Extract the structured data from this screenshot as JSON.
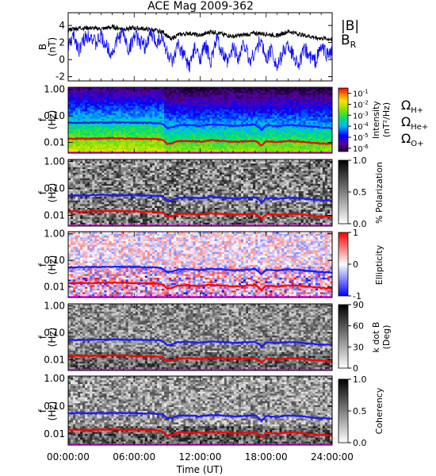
{
  "title": "ACE Mag 2009-362",
  "time_axis": {
    "label": "Time (UT)",
    "ticks": [
      "00:00:00",
      "06:00:00",
      "12:00:00",
      "18:00:00",
      "24:00:00"
    ],
    "range_hours": [
      0,
      24
    ]
  },
  "line_colors": {
    "B": "#000000",
    "BR": "#1010ff",
    "H": "#1a1aff",
    "He": "#ff0000",
    "O": "#ff00ff"
  },
  "chart_data": [
    {
      "type": "line",
      "ylabel": "B",
      "yunit": "(nT)",
      "ylim": [
        -2.5,
        5.5
      ],
      "yticks": [
        "-2",
        "0",
        "2",
        "4"
      ],
      "ytick_values": [
        -2,
        0,
        2,
        4
      ],
      "legend": [
        {
          "label": "|B|",
          "color": "#000000"
        },
        {
          "label": "B",
          "sub": "R",
          "color": "#1010ff"
        }
      ],
      "series": [
        {
          "name": "|B|",
          "x": [
            0,
            1,
            2,
            3,
            4,
            5,
            6,
            7,
            8,
            8.7,
            9.3,
            10,
            11,
            12,
            13,
            14,
            15,
            16,
            17,
            18,
            19,
            20,
            21,
            22,
            23,
            24
          ],
          "values": [
            3.5,
            3.7,
            3.7,
            3.6,
            3.8,
            3.6,
            3.7,
            3.6,
            3.4,
            3.2,
            2.4,
            2.9,
            3.1,
            2.8,
            3.3,
            3.0,
            2.7,
            2.9,
            3.1,
            3.0,
            2.8,
            3.3,
            3.0,
            2.7,
            2.5,
            2.4
          ]
        },
        {
          "name": "B_R",
          "x": [
            0,
            0.5,
            1,
            1.5,
            2,
            2.5,
            3,
            3.5,
            4,
            4.5,
            5,
            5.5,
            6,
            6.5,
            7,
            7.5,
            8,
            8.5,
            9,
            9.5,
            10,
            10.5,
            11,
            11.5,
            12,
            12.5,
            13,
            13.5,
            14,
            14.5,
            15,
            15.5,
            16,
            16.5,
            17,
            17.5,
            18,
            18.5,
            19,
            19.5,
            20,
            20.5,
            21,
            21.5,
            22,
            22.5,
            23,
            23.5,
            24
          ],
          "values": [
            1.5,
            2.8,
            1.2,
            2.5,
            3.0,
            1.8,
            2.7,
            1.5,
            0.7,
            2.4,
            3.2,
            1.0,
            2.8,
            2.2,
            1.5,
            3.0,
            2.0,
            2.6,
            0.8,
            -0.6,
            1.8,
            0.5,
            -0.8,
            1.2,
            0.2,
            1.6,
            -0.2,
            2.5,
            0.8,
            -0.5,
            1.5,
            0.2,
            2.0,
            -0.3,
            1.0,
            2.2,
            0.0,
            1.3,
            -1.0,
            0.8,
            1.8,
            0.4,
            -0.5,
            1.2,
            0.3,
            -0.2,
            1.5,
            0.6,
            0.9
          ]
        }
      ]
    },
    {
      "type": "heatmap",
      "ylabel": "f",
      "yunit": "(Hz)",
      "yscale": "log",
      "ylim": [
        0.004,
        1.2
      ],
      "yticks": [
        "1.00",
        "0.10",
        "0.01"
      ],
      "ytick_values": [
        1,
        0.1,
        0.01
      ],
      "colorbar": {
        "label": "Intensity",
        "unit": "(nT²/Hz)",
        "scale": "log",
        "colormap": "rainbow",
        "ticks": [
          {
            "base": "10",
            "exp": "-1",
            "value": 0.1
          },
          {
            "base": "10",
            "exp": "-2",
            "value": 0.01
          },
          {
            "base": "10",
            "exp": "-3",
            "value": 0.001
          },
          {
            "base": "10",
            "exp": "-4",
            "value": 0.0001
          },
          {
            "base": "10",
            "exp": "-5",
            "value": 1e-05
          },
          {
            "base": "10",
            "exp": "-6",
            "value": 1e-06
          }
        ],
        "range": [
          5e-07,
          0.3
        ]
      },
      "legend": [
        {
          "label": "Ω",
          "sub": "H+",
          "color": "#1a1aff"
        },
        {
          "label": "Ω",
          "sub": "He+",
          "color": "#ff0000"
        },
        {
          "label": "Ω",
          "sub": "O+",
          "color": "#ff00ff"
        }
      ]
    },
    {
      "type": "heatmap",
      "ylabel": "f",
      "yunit": "(Hz)",
      "yscale": "log",
      "ylim": [
        0.004,
        1.2
      ],
      "yticks": [
        "1.00",
        "0.10",
        "0.01"
      ],
      "ytick_values": [
        1,
        0.1,
        0.01
      ],
      "colorbar": {
        "label": "% Polarization",
        "unit": "",
        "colormap": "gray",
        "ticks": [
          "1.0",
          "0.5",
          "0.0"
        ],
        "tick_values": [
          1.0,
          0.5,
          0.0
        ],
        "range": [
          0,
          1
        ]
      }
    },
    {
      "type": "heatmap",
      "ylabel": "f",
      "yunit": "(Hz)",
      "yscale": "log",
      "ylim": [
        0.004,
        1.2
      ],
      "yticks": [
        "1.00",
        "0.10",
        "0.01"
      ],
      "ytick_values": [
        1,
        0.1,
        0.01
      ],
      "colorbar": {
        "label": "Ellipticity",
        "unit": "",
        "colormap": "bluewhitered",
        "ticks": [
          "1",
          "0",
          "-1"
        ],
        "tick_values": [
          1,
          0,
          -1
        ],
        "range": [
          -1,
          1
        ]
      }
    },
    {
      "type": "heatmap",
      "ylabel": "f",
      "yunit": "(Hz)",
      "yscale": "log",
      "ylim": [
        0.004,
        1.2
      ],
      "yticks": [
        "1.00",
        "0.10",
        "0.01"
      ],
      "ytick_values": [
        1,
        0.1,
        0.01
      ],
      "colorbar": {
        "label": "k dot B",
        "unit": "(Deg)",
        "colormap": "gray",
        "ticks": [
          "90",
          "60",
          "30",
          "0"
        ],
        "tick_values": [
          90,
          60,
          30,
          0
        ],
        "range": [
          0,
          90
        ]
      }
    },
    {
      "type": "heatmap",
      "ylabel": "f",
      "yunit": "(Hz)",
      "yscale": "log",
      "ylim": [
        0.004,
        1.2
      ],
      "yticks": [
        "1.00",
        "0.10",
        "0.01"
      ],
      "ytick_values": [
        1,
        0.1,
        0.01
      ],
      "colorbar": {
        "label": "Coherency",
        "unit": "",
        "colormap": "gray",
        "ticks": [
          "1.0",
          "0.5",
          "0.0"
        ],
        "tick_values": [
          1.0,
          0.5,
          0.0
        ],
        "range": [
          0,
          1
        ]
      }
    }
  ],
  "gyro_lines": {
    "x": [
      0,
      2,
      4,
      6,
      8,
      8.6,
      9,
      9.5,
      10,
      11,
      12,
      13,
      14,
      15,
      16,
      17,
      17.6,
      18,
      18.5,
      19,
      20,
      21,
      22,
      23,
      24
    ],
    "H": [
      0.055,
      0.056,
      0.057,
      0.056,
      0.054,
      0.05,
      0.035,
      0.038,
      0.045,
      0.046,
      0.043,
      0.048,
      0.046,
      0.042,
      0.044,
      0.047,
      0.03,
      0.045,
      0.043,
      0.041,
      0.046,
      0.044,
      0.04,
      0.037,
      0.035
    ],
    "He": [
      0.014,
      0.014,
      0.0145,
      0.014,
      0.0135,
      0.0125,
      0.0088,
      0.0095,
      0.0112,
      0.0115,
      0.0108,
      0.012,
      0.0115,
      0.0105,
      0.011,
      0.0118,
      0.0075,
      0.0112,
      0.0108,
      0.0102,
      0.0115,
      0.011,
      0.01,
      0.0092,
      0.0088
    ],
    "O": [
      0.0035,
      0.0035,
      0.0036,
      0.0035,
      0.0034,
      0.0031,
      0.0022,
      0.0024,
      0.0028,
      0.0029,
      0.0027,
      0.003,
      0.0029,
      0.0026,
      0.0028,
      0.003,
      0.0019,
      0.0028,
      0.0027,
      0.0026,
      0.0029,
      0.0028,
      0.0025,
      0.0023,
      0.0022
    ]
  }
}
